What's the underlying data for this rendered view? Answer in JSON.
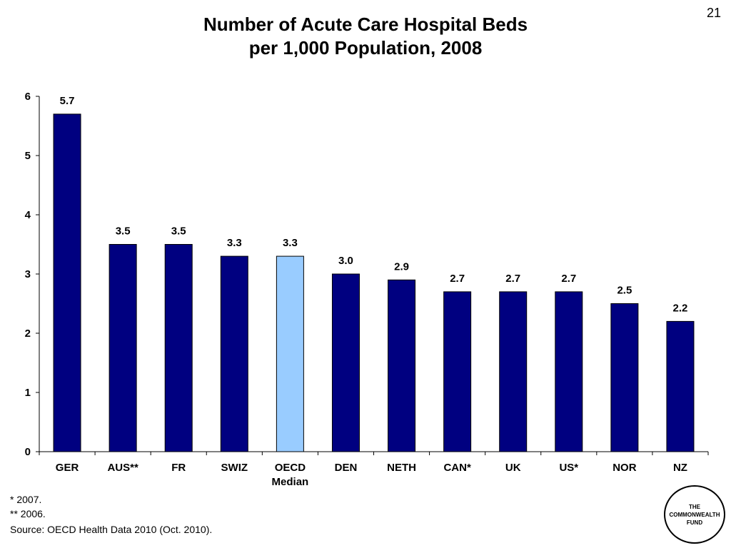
{
  "slide_number": "21",
  "chart_data": {
    "type": "bar",
    "title_lines": [
      "Number of Acute Care Hospital Beds",
      "per 1,000 Population, 2008"
    ],
    "categories": [
      "GER",
      "AUS**",
      "FR",
      "SWIZ",
      "OECD Median",
      "DEN",
      "NETH",
      "CAN*",
      "UK",
      "US*",
      "NOR",
      "NZ"
    ],
    "values": [
      5.7,
      3.5,
      3.5,
      3.3,
      3.3,
      3.0,
      2.9,
      2.7,
      2.7,
      2.7,
      2.5,
      2.2
    ],
    "value_labels": [
      "5.7",
      "3.5",
      "3.5",
      "3.3",
      "3.3",
      "3.0",
      "2.9",
      "2.7",
      "2.7",
      "2.7",
      "2.5",
      "2.2"
    ],
    "highlight_index": 4,
    "ylim": [
      0,
      6
    ],
    "yticks": [
      0,
      1,
      2,
      3,
      4,
      5,
      6
    ],
    "grid": false,
    "legend": "none",
    "bar_color": "#000080",
    "highlight_color": "#99CCFF"
  },
  "footnotes": [
    "* 2007.",
    "** 2006."
  ],
  "source": "Source: OECD Health Data 2010 (Oct. 2010).",
  "logo": {
    "lines": [
      "THE",
      "COMMONWEALTH",
      "FUND"
    ]
  }
}
